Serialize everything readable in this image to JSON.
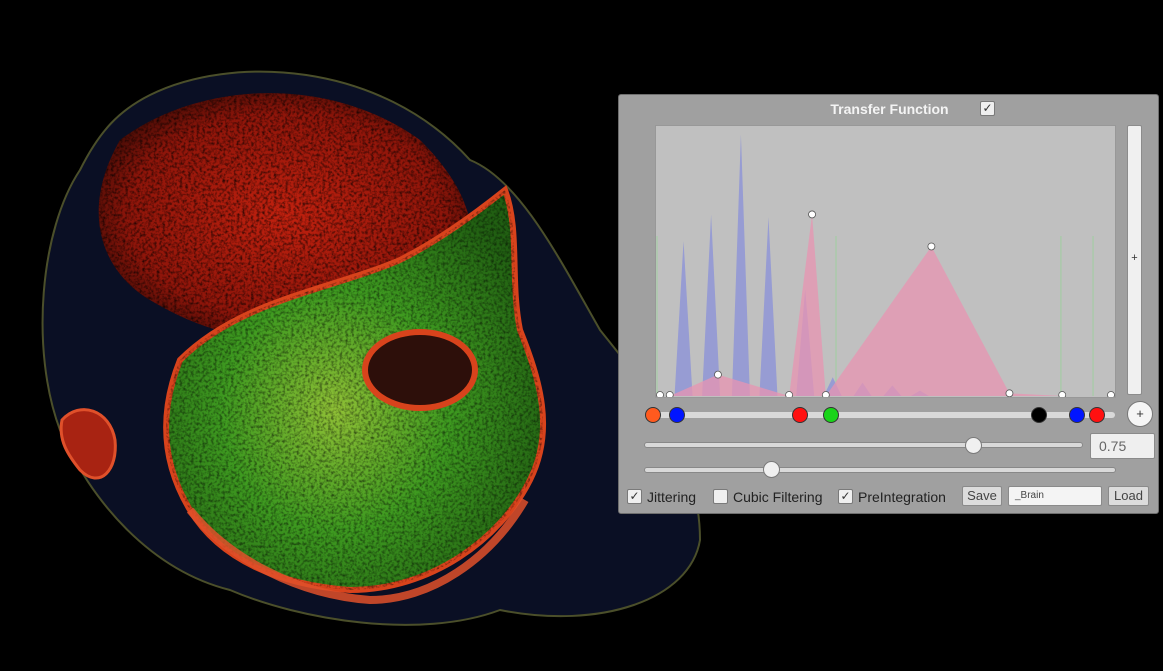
{
  "panel": {
    "title": "Transfer Function",
    "title_checked": true,
    "shift_value": "0.75",
    "shift_fraction": 0.75,
    "secondary_fraction": 0.27,
    "scroll_plus": "+",
    "add_color": "+",
    "options": [
      {
        "label": "Jittering",
        "checked": true
      },
      {
        "label": "Cubic Filtering",
        "checked": false
      },
      {
        "label": "PreIntegration",
        "checked": true
      }
    ],
    "save_label": "Save",
    "load_label": "Load",
    "name_value": "_Brain",
    "check_mark": "✓"
  },
  "colors": {
    "histogram": "#8f95d6",
    "alpha_fill": "#e894b2",
    "graph_bg": "#c0c0c0",
    "panel_bg": "#a0a0a0"
  },
  "histogram_peaks": [
    {
      "pos": 0.06,
      "height": 0.58
    },
    {
      "pos": 0.12,
      "height": 0.68
    },
    {
      "pos": 0.185,
      "height": 0.98
    },
    {
      "pos": 0.245,
      "height": 0.67
    },
    {
      "pos": 0.325,
      "height": 0.4
    },
    {
      "pos": 0.385,
      "height": 0.07
    },
    {
      "pos": 0.45,
      "height": 0.05
    },
    {
      "pos": 0.515,
      "height": 0.04
    },
    {
      "pos": 0.575,
      "height": 0.02
    }
  ],
  "alpha_points": [
    {
      "pos": 0.0,
      "alpha": 0.0
    },
    {
      "pos": 0.03,
      "alpha": 0.0
    },
    {
      "pos": 0.135,
      "alpha": 0.08
    },
    {
      "pos": 0.29,
      "alpha": 0.0
    },
    {
      "pos": 0.34,
      "alpha": 0.68
    },
    {
      "pos": 0.37,
      "alpha": 0.0
    },
    {
      "pos": 0.6,
      "alpha": 0.56
    },
    {
      "pos": 0.77,
      "alpha": 0.01
    },
    {
      "pos": 0.885,
      "alpha": 0.0
    },
    {
      "pos": 1.0,
      "alpha": 0.0
    }
  ],
  "color_points": [
    {
      "pos": 0.0,
      "color": "#ff5a1e"
    },
    {
      "pos": 0.055,
      "color": "#0015ff"
    },
    {
      "pos": 0.33,
      "color": "#ff1010"
    },
    {
      "pos": 0.4,
      "color": "#19d419"
    },
    {
      "pos": 0.87,
      "color": "#000000"
    },
    {
      "pos": 0.955,
      "color": "#0015ff"
    },
    {
      "pos": 1.0,
      "color": "#ff1010"
    }
  ],
  "render": {
    "description_colors": {
      "tissue": "#d11c10",
      "soft": "#3fae26"
    }
  }
}
